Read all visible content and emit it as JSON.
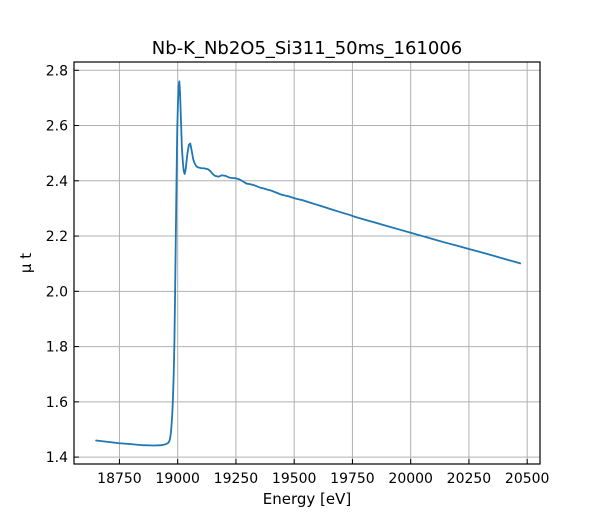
{
  "chart_data": {
    "type": "line",
    "title": "Nb-K_Nb2O5_Si311_50ms_161006",
    "xlabel": "Energy [eV]",
    "ylabel": "μ t",
    "xlim": [
      18555,
      20555
    ],
    "ylim": [
      1.375,
      2.83
    ],
    "xticks": [
      18750,
      19000,
      19250,
      19500,
      19750,
      20000,
      20250,
      20500
    ],
    "yticks": [
      1.4,
      1.6,
      1.8,
      2.0,
      2.2,
      2.4,
      2.6,
      2.8
    ],
    "ytick_labels": [
      "1.4",
      "1.6",
      "1.8",
      "2.0",
      "2.2",
      "2.4",
      "2.6",
      "2.8"
    ],
    "grid": true,
    "color": "#1f77b4",
    "series": [
      {
        "x": [
          18650,
          18700,
          18750,
          18800,
          18850,
          18900,
          18930,
          18950,
          18960,
          18965,
          18968,
          18971,
          18974,
          18977,
          18980,
          18983,
          18986,
          18989,
          18992,
          18995,
          18998,
          19001,
          19004,
          19007,
          19010,
          19014,
          19018,
          19022,
          19026,
          19030,
          19034,
          19038,
          19042,
          19048,
          19054,
          19060,
          19066,
          19072,
          19078,
          19084,
          19090,
          19100,
          19115,
          19130,
          19140,
          19150,
          19160,
          19175,
          19190,
          19205,
          19220,
          19235,
          19250,
          19265,
          19280,
          19295,
          19310,
          19325,
          19340,
          19355,
          19370,
          19385,
          19400,
          19415,
          19430,
          19445,
          19460,
          19475,
          19490,
          19505,
          19520,
          19535,
          19550,
          19565,
          19580,
          19595,
          19610,
          19625,
          19640,
          19655,
          19670,
          19685,
          19700,
          19720,
          19740,
          19760,
          19800,
          19850,
          19900,
          19950,
          20000,
          20050,
          20100,
          20150,
          20200,
          20250,
          20300,
          20350,
          20400,
          20450,
          20470
        ],
        "y": [
          1.46,
          1.455,
          1.45,
          1.447,
          1.443,
          1.442,
          1.443,
          1.447,
          1.452,
          1.46,
          1.47,
          1.49,
          1.52,
          1.56,
          1.62,
          1.7,
          1.82,
          2.0,
          2.2,
          2.4,
          2.58,
          2.68,
          2.74,
          2.76,
          2.72,
          2.62,
          2.52,
          2.47,
          2.435,
          2.425,
          2.44,
          2.47,
          2.5,
          2.53,
          2.535,
          2.51,
          2.48,
          2.465,
          2.455,
          2.45,
          2.448,
          2.446,
          2.445,
          2.442,
          2.435,
          2.425,
          2.418,
          2.415,
          2.42,
          2.418,
          2.412,
          2.41,
          2.409,
          2.405,
          2.398,
          2.39,
          2.388,
          2.385,
          2.38,
          2.375,
          2.372,
          2.368,
          2.365,
          2.36,
          2.355,
          2.35,
          2.347,
          2.344,
          2.34,
          2.336,
          2.333,
          2.33,
          2.326,
          2.322,
          2.318,
          2.314,
          2.31,
          2.306,
          2.302,
          2.298,
          2.294,
          2.29,
          2.286,
          2.281,
          2.276,
          2.27,
          2.26,
          2.248,
          2.236,
          2.224,
          2.212,
          2.2,
          2.188,
          2.176,
          2.165,
          2.153,
          2.142,
          2.13,
          2.118,
          2.106,
          2.101
        ]
      }
    ]
  }
}
